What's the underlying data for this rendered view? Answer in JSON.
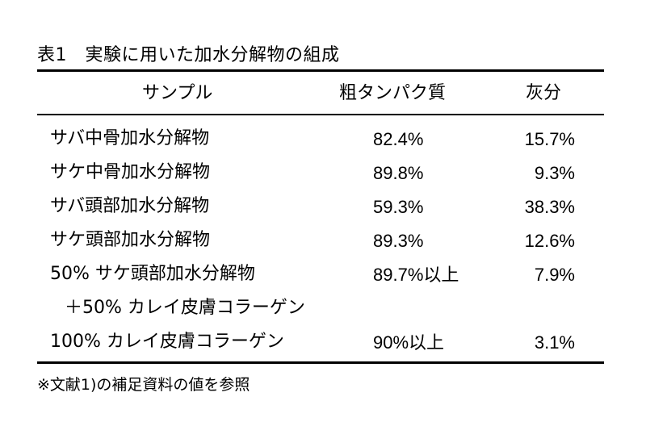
{
  "table": {
    "caption": "表1　実験に用いた加水分解物の組成",
    "headers": {
      "sample": "サンプル",
      "protein": "粗タンパク質",
      "ash": "灰分"
    },
    "rows": [
      {
        "name": "サバ中骨加水分解物",
        "protein": "82.4%",
        "ash": "15.7%"
      },
      {
        "name": "サケ中骨加水分解物",
        "protein": "89.8%",
        "ash": "9.3%"
      },
      {
        "name": "サバ頭部加水分解物",
        "protein": "59.3%",
        "ash": "38.3%"
      },
      {
        "name": "サケ頭部加水分解物",
        "protein": "89.3%",
        "ash": "12.6%"
      },
      {
        "name": "50% サケ頭部加水分解物",
        "protein": "89.7%以上",
        "ash": "7.9%"
      },
      {
        "name": "＋50% カレイ皮膚コラーゲン",
        "protein": "",
        "ash": ""
      },
      {
        "name": "100% カレイ皮膚コラーゲン",
        "protein": "90%以上",
        "ash": "3.1%"
      }
    ],
    "footnote": "※文献1)の補足資料の値を参照"
  }
}
